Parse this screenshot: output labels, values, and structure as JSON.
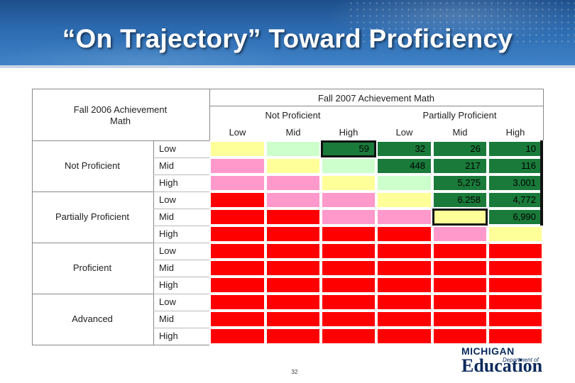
{
  "title": "“On Trajectory” Toward Proficiency",
  "table": {
    "corner_header": "Fall 2006 Achievement Math",
    "top_header": "Fall 2007 Achievement Math",
    "groups": [
      "Not Proficient",
      "Partially Proficient"
    ],
    "subheaders": [
      "Low",
      "Mid",
      "High",
      "Low",
      "Mid",
      "High"
    ],
    "row_groups": [
      {
        "name": "Not Proficient",
        "levels": [
          "Low",
          "Mid",
          "High"
        ]
      },
      {
        "name": "Partially Proficient",
        "levels": [
          "Low",
          "Mid",
          "High"
        ]
      },
      {
        "name": "Proficient",
        "levels": [
          "Low",
          "Mid",
          "High"
        ]
      },
      {
        "name": "Advanced",
        "levels": [
          "Low",
          "Mid",
          "High"
        ]
      }
    ],
    "colors": {
      "Y": "#ffff99",
      "G": "#ccffcc",
      "D": "#1a7a3a",
      "P": "#ff99cc",
      "R": "#ff0000"
    },
    "cell_colors": [
      [
        "Y",
        "G",
        "D",
        "D",
        "D",
        "D"
      ],
      [
        "P",
        "Y",
        "G",
        "D",
        "D",
        "D"
      ],
      [
        "P",
        "P",
        "Y",
        "G",
        "D",
        "D"
      ],
      [
        "R",
        "P",
        "P",
        "Y",
        "D",
        "D"
      ],
      [
        "R",
        "R",
        "P",
        "P",
        "Y",
        "D"
      ],
      [
        "R",
        "R",
        "R",
        "R",
        "P",
        "Y"
      ],
      [
        "R",
        "R",
        "R",
        "R",
        "R",
        "R"
      ],
      [
        "R",
        "R",
        "R",
        "R",
        "R",
        "R"
      ],
      [
        "R",
        "R",
        "R",
        "R",
        "R",
        "R"
      ],
      [
        "R",
        "R",
        "R",
        "R",
        "R",
        "R"
      ],
      [
        "R",
        "R",
        "R",
        "R",
        "R",
        "R"
      ],
      [
        "R",
        "R",
        "R",
        "R",
        "R",
        "R"
      ]
    ],
    "values": [
      [
        "",
        "",
        "59",
        "32",
        "26",
        "10"
      ],
      [
        "",
        "",
        "",
        "448",
        "217",
        "116"
      ],
      [
        "",
        "",
        "",
        "",
        "5,275",
        "3.001"
      ],
      [
        "",
        "",
        "",
        "",
        "6.258",
        "4,772"
      ],
      [
        "",
        "",
        "",
        "",
        "",
        "6,990"
      ]
    ]
  },
  "page_number": "32",
  "logo": {
    "line1": "MICHIGAN",
    "line2": "Department of",
    "line3": "Education"
  }
}
